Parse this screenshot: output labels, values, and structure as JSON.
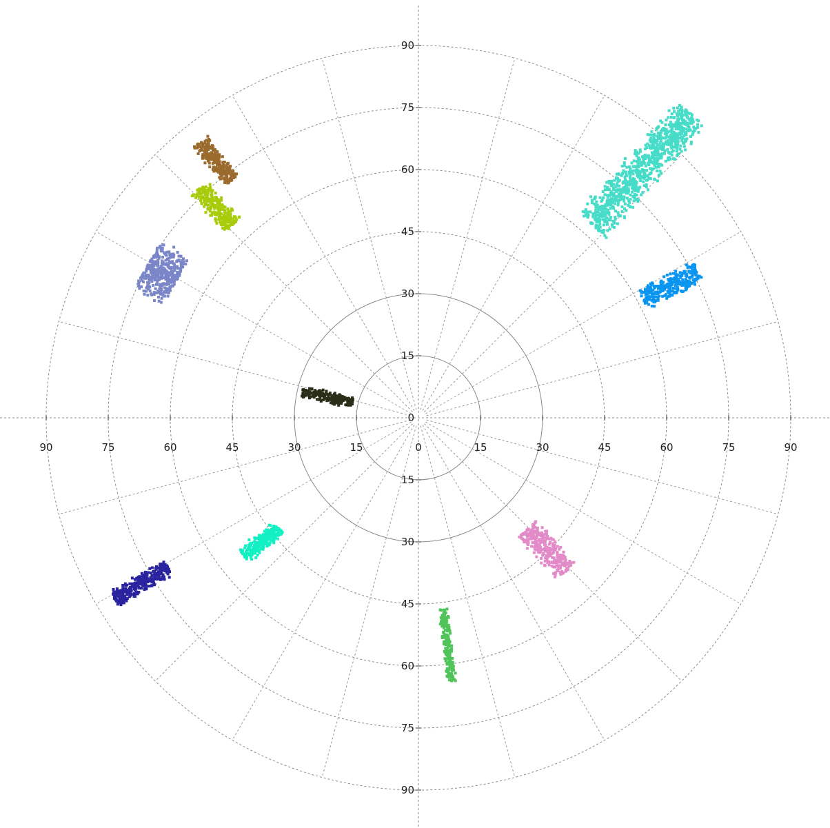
{
  "chart_data": {
    "type": "scatter",
    "subtype": "polar",
    "title": "",
    "radial_ticks": [
      "0",
      "15",
      "30",
      "45",
      "60",
      "75",
      "90"
    ],
    "r_range": [
      0,
      90
    ],
    "angular_grid_step_deg": 15,
    "grid": true,
    "series": [
      {
        "color": "#46dcc8",
        "center": [
          54,
          60
        ],
        "length": 36,
        "width": 5,
        "points": 900
      },
      {
        "color": "#0a96f0",
        "center": [
          61,
          32
        ],
        "length": 15,
        "width": 3,
        "points": 300
      },
      {
        "color": "#9b6a2d",
        "center": [
          -49,
          62
        ],
        "length": 12,
        "width": 2.5,
        "points": 250
      },
      {
        "color": "#a8cb0b",
        "center": [
          -49,
          51
        ],
        "length": 12,
        "width": 3,
        "points": 250
      },
      {
        "color": "#7b86c8",
        "center": [
          -62,
          35
        ],
        "length": 8,
        "width": 7,
        "points": 400
      },
      {
        "color": "#2b2e18",
        "center": [
          -22,
          5
        ],
        "length": 12.5,
        "width": 1.6,
        "points": 200
      },
      {
        "color": "#13f0c3",
        "center": [
          -38,
          -30
        ],
        "length": 11,
        "width": 2.3,
        "points": 250
      },
      {
        "color": "#2a239f",
        "center": [
          -67,
          -40
        ],
        "length": 15,
        "width": 2.3,
        "points": 300
      },
      {
        "color": "#e38bc8",
        "center": [
          31,
          -32
        ],
        "length": 14,
        "width": 3.5,
        "points": 300
      },
      {
        "color": "#50c45a",
        "center": [
          7,
          -55
        ],
        "length": 17.5,
        "width": 1.3,
        "points": 200
      }
    ]
  }
}
